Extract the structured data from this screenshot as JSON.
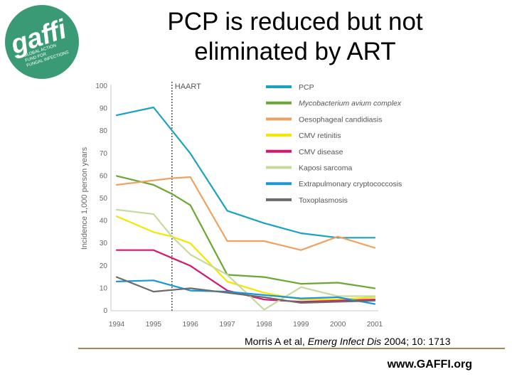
{
  "slide": {
    "title_line1": "PCP is reduced but not",
    "title_line2": "eliminated by ART",
    "citation_author": "Morris A  et al,",
    "citation_journal": "Emerg Infect Dis",
    "citation_ref": "2004; 10: 1713",
    "url": "www.GAFFI.org"
  },
  "logo": {
    "mark": "gaffi",
    "tagline_1": "GLOBAL ACTION",
    "tagline_2": "FUND FOR",
    "tagline_3": "FUNGAL INFECTIONS",
    "colors": {
      "circle": "#3a9a76",
      "text": "#ffffff"
    }
  },
  "chart_data": {
    "type": "line",
    "title": "",
    "xlabel": "",
    "ylabel": "Incidence 1,000 person years",
    "xlim": [
      1994,
      2001
    ],
    "ylim": [
      0,
      100
    ],
    "x": [
      1994,
      1995,
      1996,
      1997,
      1998,
      1999,
      2000,
      2001
    ],
    "xticks": [
      "1994",
      "1995",
      "1996",
      "1997",
      "1998",
      "1999",
      "2000",
      "2001"
    ],
    "yticks": [
      "0",
      "10",
      "20",
      "30",
      "40",
      "50",
      "60",
      "70",
      "80",
      "90",
      "100"
    ],
    "annotation": {
      "label": "HAART",
      "x": 1995.5
    },
    "legend_position": "top-right",
    "series": [
      {
        "name": "PCP",
        "italic": false,
        "color": "#1aa3c0",
        "points": [
          [
            1994,
            87
          ],
          [
            1995,
            90.5
          ],
          [
            1996,
            70
          ],
          [
            1997,
            44.5
          ],
          [
            1998,
            39
          ],
          [
            1999,
            34.5
          ],
          [
            2000,
            32.5
          ],
          [
            2001,
            32.5
          ]
        ]
      },
      {
        "name": "Mycobacterium avium complex",
        "italic": true,
        "color": "#6aa832",
        "points": [
          [
            1994,
            60
          ],
          [
            1995,
            56
          ],
          [
            1995.5,
            52
          ],
          [
            1996,
            47
          ],
          [
            1997,
            16
          ],
          [
            1998,
            15
          ],
          [
            1999,
            12
          ],
          [
            2000,
            12.5
          ],
          [
            2001,
            10
          ]
        ]
      },
      {
        "name": "Oesophageal candidiasis",
        "italic": false,
        "color": "#f0a060",
        "points": [
          [
            1994,
            56
          ],
          [
            1995,
            58
          ],
          [
            1995.5,
            59
          ],
          [
            1996,
            59.5
          ],
          [
            1997,
            31
          ],
          [
            1998,
            31
          ],
          [
            1999,
            27
          ],
          [
            2000,
            33
          ],
          [
            2001,
            28
          ]
        ]
      },
      {
        "name": "CMV retinitis",
        "italic": false,
        "color": "#f5e600",
        "points": [
          [
            1994,
            42
          ],
          [
            1995,
            35
          ],
          [
            1995.5,
            33
          ],
          [
            1996,
            30
          ],
          [
            1997,
            13
          ],
          [
            1998,
            8
          ],
          [
            1999,
            5
          ],
          [
            2000,
            5
          ],
          [
            2001,
            6
          ]
        ]
      },
      {
        "name": "CMV disease",
        "italic": false,
        "color": "#d8166e",
        "points": [
          [
            1994,
            27
          ],
          [
            1995,
            27
          ],
          [
            1996,
            20
          ],
          [
            1997,
            9
          ],
          [
            1998,
            5
          ],
          [
            1999,
            4
          ],
          [
            2000,
            4.5
          ],
          [
            2001,
            5
          ]
        ]
      },
      {
        "name": "Kaposi sarcoma",
        "italic": false,
        "color": "#c6da9c",
        "points": [
          [
            1994,
            45
          ],
          [
            1995,
            43
          ],
          [
            1995.5,
            33
          ],
          [
            1996,
            25
          ],
          [
            1997,
            16
          ],
          [
            1998,
            0.5
          ],
          [
            1999,
            10.5
          ],
          [
            2000,
            6.5
          ],
          [
            2001,
            6.5
          ]
        ]
      },
      {
        "name": "Extrapulmonary cryptococcosis",
        "italic": false,
        "color": "#1a95d6",
        "points": [
          [
            1994,
            13
          ],
          [
            1995,
            13.5
          ],
          [
            1996,
            9
          ],
          [
            1997,
            8.5
          ],
          [
            1998,
            7
          ],
          [
            1999,
            5.5
          ],
          [
            2000,
            6
          ],
          [
            2001,
            3
          ]
        ]
      },
      {
        "name": "Toxoplasmosis",
        "italic": false,
        "color": "#6b6b6b",
        "points": [
          [
            1994,
            15
          ],
          [
            1995,
            8.5
          ],
          [
            1996,
            10
          ],
          [
            1997,
            8
          ],
          [
            1998,
            6
          ],
          [
            1999,
            3.5
          ],
          [
            2000,
            4
          ],
          [
            2001,
            4.5
          ]
        ]
      }
    ]
  }
}
